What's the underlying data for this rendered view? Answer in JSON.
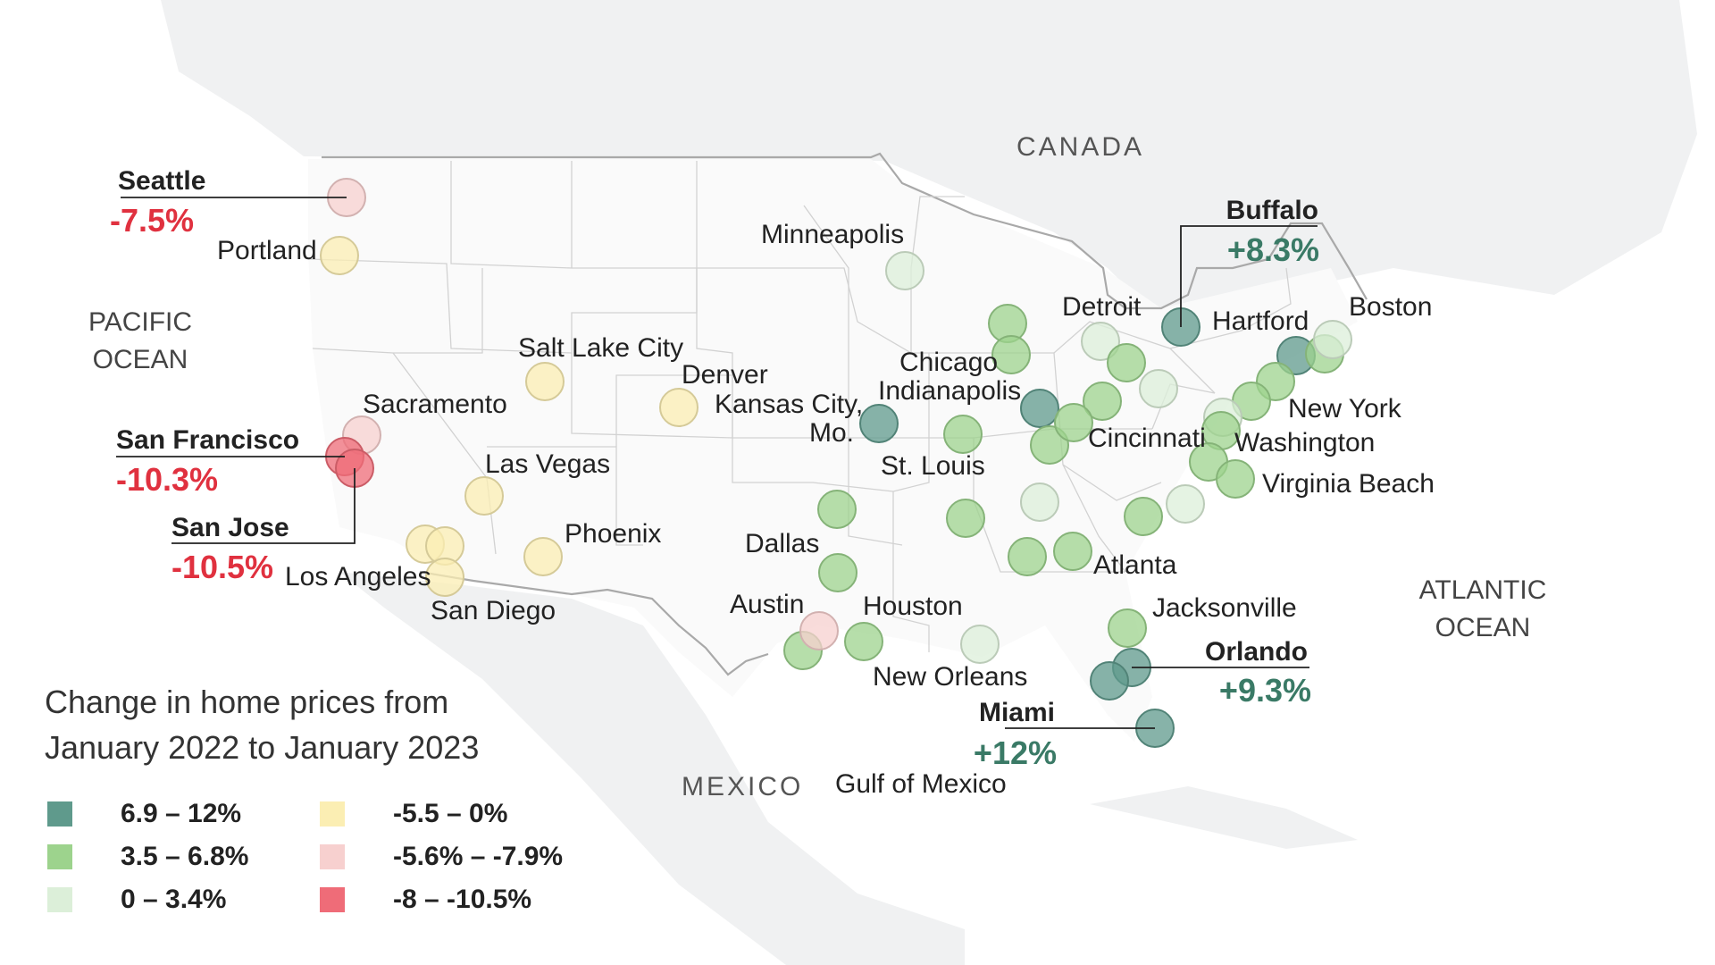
{
  "legend": {
    "title_line1": "Change in home prices from",
    "title_line2": "January 2022 to January 2023",
    "bins": [
      {
        "label": "6.9 – 12%",
        "color": "#5f9a8c"
      },
      {
        "label": "3.5 – 6.8%",
        "color": "#9dd38d"
      },
      {
        "label": "0 – 3.4%",
        "color": "#dcefd9"
      },
      {
        "label": "-5.5 – 0%",
        "color": "#fbeeb3"
      },
      {
        "label": "-5.6% – -7.9%",
        "color": "#f7d0cf"
      },
      {
        "label": "-8 – -10.5%",
        "color": "#ef6c78"
      }
    ]
  },
  "region_labels": {
    "canada": "CANADA",
    "mexico": "MEXICO",
    "gulf": "Gulf of Mexico",
    "pacific_1": "PACIFIC",
    "pacific_2": "OCEAN",
    "atlantic_1": "ATLANTIC",
    "atlantic_2": "OCEAN"
  },
  "highlights": {
    "seattle": {
      "name": "Seattle",
      "value": "-7.5%"
    },
    "san_francisco": {
      "name": "San Francisco",
      "value": "-10.3%"
    },
    "san_jose": {
      "name": "San Jose",
      "value": "-10.5%"
    },
    "buffalo": {
      "name": "Buffalo",
      "value": "+8.3%"
    },
    "orlando": {
      "name": "Orlando",
      "value": "+9.3%"
    },
    "miami": {
      "name": "Miami",
      "value": "+12%"
    }
  },
  "city_labels": {
    "portland": "Portland",
    "sacramento": "Sacramento",
    "salt_lake_city": "Salt Lake City",
    "denver": "Denver",
    "las_vegas": "Las Vegas",
    "phoenix": "Phoenix",
    "los_angeles": "Los Angeles",
    "san_diego": "San Diego",
    "minneapolis": "Minneapolis",
    "kansas_city_1": "Kansas City,",
    "kansas_city_2": "Mo.",
    "chicago": "Chicago",
    "indianapolis": "Indianapolis",
    "st_louis": "St. Louis",
    "dallas": "Dallas",
    "austin": "Austin",
    "houston": "Houston",
    "new_orleans": "New Orleans",
    "detroit": "Detroit",
    "cincinnati": "Cincinnati",
    "hartford": "Hartford",
    "boston": "Boston",
    "new_york": "New York",
    "washington": "Washington",
    "virginia_beach": "Virginia Beach",
    "atlanta": "Atlanta",
    "jacksonville": "Jacksonville"
  },
  "markers": {
    "seattle": {
      "bin": 4
    },
    "portland": {
      "bin": 3
    },
    "sacramento": {
      "bin": 4
    },
    "san_francisco": {
      "bin": 5
    },
    "san_jose": {
      "bin": 5
    },
    "los_angeles": {
      "bin": 3
    },
    "riverside": {
      "bin": 3
    },
    "san_diego": {
      "bin": 3
    },
    "las_vegas": {
      "bin": 3
    },
    "phoenix": {
      "bin": 3
    },
    "salt_lake_city": {
      "bin": 3
    },
    "denver": {
      "bin": 3
    },
    "minneapolis": {
      "bin": 2
    },
    "kansas_city": {
      "bin": 0
    },
    "st_louis": {
      "bin": 1
    },
    "milwaukee": {
      "bin": 1
    },
    "chicago": {
      "bin": 1
    },
    "indianapolis": {
      "bin": 0
    },
    "louisville": {
      "bin": 1
    },
    "columbus": {
      "bin": 1
    },
    "cincinnati": {
      "bin": 1
    },
    "detroit": {
      "bin": 2
    },
    "cleveland": {
      "bin": 1
    },
    "pittsburgh": {
      "bin": 2
    },
    "buffalo": {
      "bin": 0
    },
    "hartford": {
      "bin": 0
    },
    "providence": {
      "bin": 1
    },
    "boston": {
      "bin": 2
    },
    "new_york": {
      "bin": 1
    },
    "philadelphia": {
      "bin": 1
    },
    "baltimore": {
      "bin": 2
    },
    "washington": {
      "bin": 1
    },
    "richmond": {
      "bin": 1
    },
    "virginia_beach": {
      "bin": 1
    },
    "raleigh": {
      "bin": 2
    },
    "charlotte": {
      "bin": 1
    },
    "nashville": {
      "bin": 2
    },
    "memphis": {
      "bin": 1
    },
    "birmingham": {
      "bin": 1
    },
    "atlanta": {
      "bin": 1
    },
    "jacksonville": {
      "bin": 1
    },
    "orlando": {
      "bin": 0
    },
    "tampa": {
      "bin": 0
    },
    "miami": {
      "bin": 0
    },
    "new_orleans": {
      "bin": 2
    },
    "houston": {
      "bin": 1
    },
    "san_antonio": {
      "bin": 1
    },
    "austin": {
      "bin": 4
    },
    "dallas": {
      "bin": 1
    },
    "oklahoma_city": {
      "bin": 1
    }
  }
}
